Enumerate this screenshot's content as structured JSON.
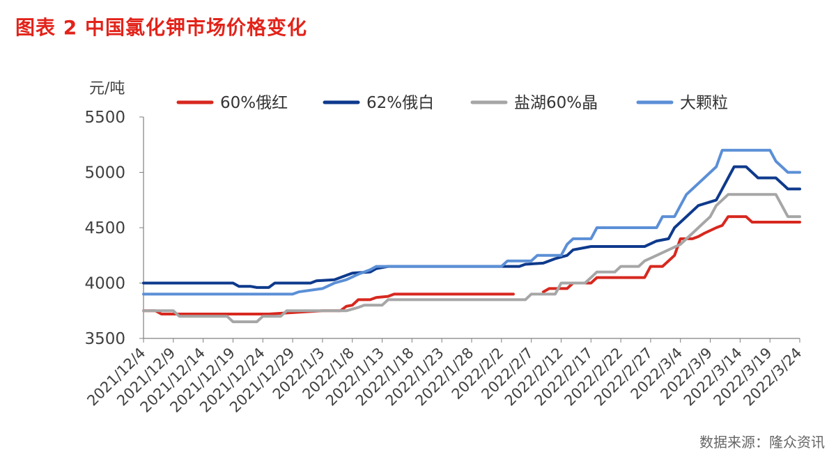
{
  "title": "图表 2 中国氯化钾市场价格变化",
  "source": "数据来源：隆众资讯",
  "colors": {
    "title": "#e2231a",
    "axis": "#7f7f7f"
  },
  "chart_data": {
    "type": "line",
    "ylabel": "元/吨",
    "ylim": [
      3500,
      5500
    ],
    "yticks": [
      3500,
      4000,
      4500,
      5000,
      5500
    ],
    "xlim": [
      "2021-12-04",
      "2022-03-24"
    ],
    "xtick_labels": [
      "2021/12/4",
      "2021/12/9",
      "2021/12/14",
      "2021/12/19",
      "2021/12/24",
      "2021/12/29",
      "2022/1/3",
      "2022/1/8",
      "2022/1/13",
      "2022/1/18",
      "2022/1/23",
      "2022/1/28",
      "2022/2/2",
      "2022/2/7",
      "2022/2/12",
      "2022/2/17",
      "2022/2/22",
      "2022/2/27",
      "2022/3/4",
      "2022/3/9",
      "2022/3/14",
      "2022/3/19",
      "2022/3/24"
    ],
    "grid": false,
    "legend_position": "top",
    "series": [
      {
        "name": "60%俄红",
        "color": "#d7281f",
        "points": [
          [
            "2021-12-04",
            3750
          ],
          [
            "2021-12-06",
            3750
          ],
          [
            "2021-12-07",
            3720
          ],
          [
            "2021-12-24",
            3720
          ],
          [
            "2021-12-25",
            3720
          ],
          [
            "2022-01-03",
            3750
          ],
          [
            "2022-01-06",
            3750
          ],
          [
            "2022-01-07",
            3790
          ],
          [
            "2022-01-08",
            3800
          ],
          [
            "2022-01-09",
            3850
          ],
          [
            "2022-01-11",
            3850
          ],
          [
            "2022-01-12",
            3870
          ],
          [
            "2022-01-14",
            3880
          ],
          [
            "2022-01-15",
            3900
          ],
          [
            "2022-02-04",
            3900
          ]
        ]
      },
      {
        "name": "60%俄红",
        "color": "#d7281f",
        "points": [
          [
            "2022-02-09",
            3920
          ],
          [
            "2022-02-10",
            3950
          ],
          [
            "2022-02-13",
            3950
          ],
          [
            "2022-02-14",
            4000
          ],
          [
            "2022-02-17",
            4000
          ],
          [
            "2022-02-18",
            4050
          ],
          [
            "2022-02-26",
            4050
          ],
          [
            "2022-02-27",
            4150
          ],
          [
            "2022-03-01",
            4150
          ],
          [
            "2022-03-03",
            4250
          ],
          [
            "2022-03-04",
            4400
          ],
          [
            "2022-03-06",
            4400
          ],
          [
            "2022-03-07",
            4420
          ],
          [
            "2022-03-08",
            4450
          ],
          [
            "2022-03-10",
            4500
          ],
          [
            "2022-03-11",
            4520
          ],
          [
            "2022-03-12",
            4600
          ],
          [
            "2022-03-15",
            4600
          ],
          [
            "2022-03-16",
            4550
          ],
          [
            "2022-03-24",
            4550
          ]
        ]
      },
      {
        "name": "62%俄白",
        "color": "#0e3a8c",
        "points": [
          [
            "2021-12-04",
            4000
          ],
          [
            "2021-12-19",
            4000
          ],
          [
            "2021-12-20",
            3970
          ],
          [
            "2021-12-22",
            3970
          ],
          [
            "2021-12-23",
            3960
          ],
          [
            "2021-12-25",
            3960
          ],
          [
            "2021-12-26",
            4000
          ],
          [
            "2022-01-01",
            4000
          ],
          [
            "2022-01-02",
            4020
          ],
          [
            "2022-01-05",
            4030
          ],
          [
            "2022-01-07",
            4070
          ],
          [
            "2022-01-08",
            4090
          ],
          [
            "2022-01-11",
            4100
          ],
          [
            "2022-01-12",
            4130
          ],
          [
            "2022-01-14",
            4150
          ],
          [
            "2022-02-05",
            4150
          ],
          [
            "2022-02-06",
            4170
          ],
          [
            "2022-02-09",
            4180
          ],
          [
            "2022-02-11",
            4220
          ],
          [
            "2022-02-13",
            4250
          ],
          [
            "2022-02-14",
            4300
          ],
          [
            "2022-02-16",
            4320
          ],
          [
            "2022-02-17",
            4330
          ],
          [
            "2022-02-26",
            4330
          ],
          [
            "2022-02-28",
            4380
          ],
          [
            "2022-03-02",
            4400
          ],
          [
            "2022-03-03",
            4500
          ],
          [
            "2022-03-05",
            4600
          ],
          [
            "2022-03-07",
            4700
          ],
          [
            "2022-03-10",
            4750
          ],
          [
            "2022-03-11",
            4850
          ],
          [
            "2022-03-12",
            4950
          ],
          [
            "2022-03-13",
            5050
          ],
          [
            "2022-03-15",
            5050
          ],
          [
            "2022-03-16",
            5000
          ],
          [
            "2022-03-17",
            4950
          ],
          [
            "2022-03-20",
            4950
          ],
          [
            "2022-03-21",
            4900
          ],
          [
            "2022-03-22",
            4850
          ],
          [
            "2022-03-24",
            4850
          ]
        ]
      },
      {
        "name": "盐湖60%晶",
        "color": "#a6a6a6",
        "points": [
          [
            "2021-12-04",
            3750
          ],
          [
            "2021-12-09",
            3750
          ],
          [
            "2021-12-10",
            3700
          ],
          [
            "2021-12-18",
            3700
          ],
          [
            "2021-12-19",
            3650
          ],
          [
            "2021-12-23",
            3650
          ],
          [
            "2021-12-24",
            3700
          ],
          [
            "2021-12-27",
            3700
          ],
          [
            "2021-12-28",
            3750
          ],
          [
            "2022-01-07",
            3750
          ],
          [
            "2022-01-09",
            3780
          ],
          [
            "2022-01-10",
            3800
          ],
          [
            "2022-01-13",
            3800
          ],
          [
            "2022-01-14",
            3850
          ],
          [
            "2022-02-06",
            3850
          ],
          [
            "2022-02-07",
            3900
          ],
          [
            "2022-02-11",
            3900
          ],
          [
            "2022-02-12",
            4000
          ],
          [
            "2022-02-16",
            4000
          ],
          [
            "2022-02-17",
            4050
          ],
          [
            "2022-02-18",
            4100
          ],
          [
            "2022-02-21",
            4100
          ],
          [
            "2022-02-22",
            4150
          ],
          [
            "2022-02-25",
            4150
          ],
          [
            "2022-02-26",
            4200
          ],
          [
            "2022-02-28",
            4250
          ],
          [
            "2022-03-02",
            4300
          ],
          [
            "2022-03-04",
            4350
          ],
          [
            "2022-03-06",
            4450
          ],
          [
            "2022-03-08",
            4550
          ],
          [
            "2022-03-09",
            4600
          ],
          [
            "2022-03-10",
            4700
          ],
          [
            "2022-03-11",
            4750
          ],
          [
            "2022-03-12",
            4800
          ],
          [
            "2022-03-20",
            4800
          ],
          [
            "2022-03-21",
            4700
          ],
          [
            "2022-03-22",
            4600
          ],
          [
            "2022-03-24",
            4600
          ]
        ]
      },
      {
        "name": "大颗粒",
        "color": "#5b8fd6",
        "points": [
          [
            "2021-12-04",
            3900
          ],
          [
            "2021-12-29",
            3900
          ],
          [
            "2021-12-30",
            3920
          ],
          [
            "2022-01-03",
            3950
          ],
          [
            "2022-01-05",
            4000
          ],
          [
            "2022-01-07",
            4030
          ],
          [
            "2022-01-09",
            4080
          ],
          [
            "2022-01-11",
            4120
          ],
          [
            "2022-01-12",
            4150
          ],
          [
            "2022-02-02",
            4150
          ],
          [
            "2022-02-03",
            4200
          ],
          [
            "2022-02-07",
            4200
          ],
          [
            "2022-02-08",
            4250
          ],
          [
            "2022-02-12",
            4250
          ],
          [
            "2022-02-13",
            4350
          ],
          [
            "2022-02-14",
            4400
          ],
          [
            "2022-02-17",
            4400
          ],
          [
            "2022-02-18",
            4500
          ],
          [
            "2022-02-28",
            4500
          ],
          [
            "2022-03-01",
            4600
          ],
          [
            "2022-03-03",
            4600
          ],
          [
            "2022-03-04",
            4700
          ],
          [
            "2022-03-05",
            4800
          ],
          [
            "2022-03-06",
            4850
          ],
          [
            "2022-03-07",
            4900
          ],
          [
            "2022-03-08",
            4950
          ],
          [
            "2022-03-09",
            5000
          ],
          [
            "2022-03-10",
            5050
          ],
          [
            "2022-03-11",
            5200
          ],
          [
            "2022-03-19",
            5200
          ],
          [
            "2022-03-20",
            5100
          ],
          [
            "2022-03-21",
            5050
          ],
          [
            "2022-03-22",
            5000
          ],
          [
            "2022-03-24",
            5000
          ]
        ]
      }
    ],
    "legend": [
      {
        "name": "60%俄红",
        "color": "#d7281f"
      },
      {
        "name": "62%俄白",
        "color": "#0e3a8c"
      },
      {
        "name": "盐湖60%晶",
        "color": "#a6a6a6"
      },
      {
        "name": "大颗粒",
        "color": "#5b8fd6"
      }
    ]
  }
}
